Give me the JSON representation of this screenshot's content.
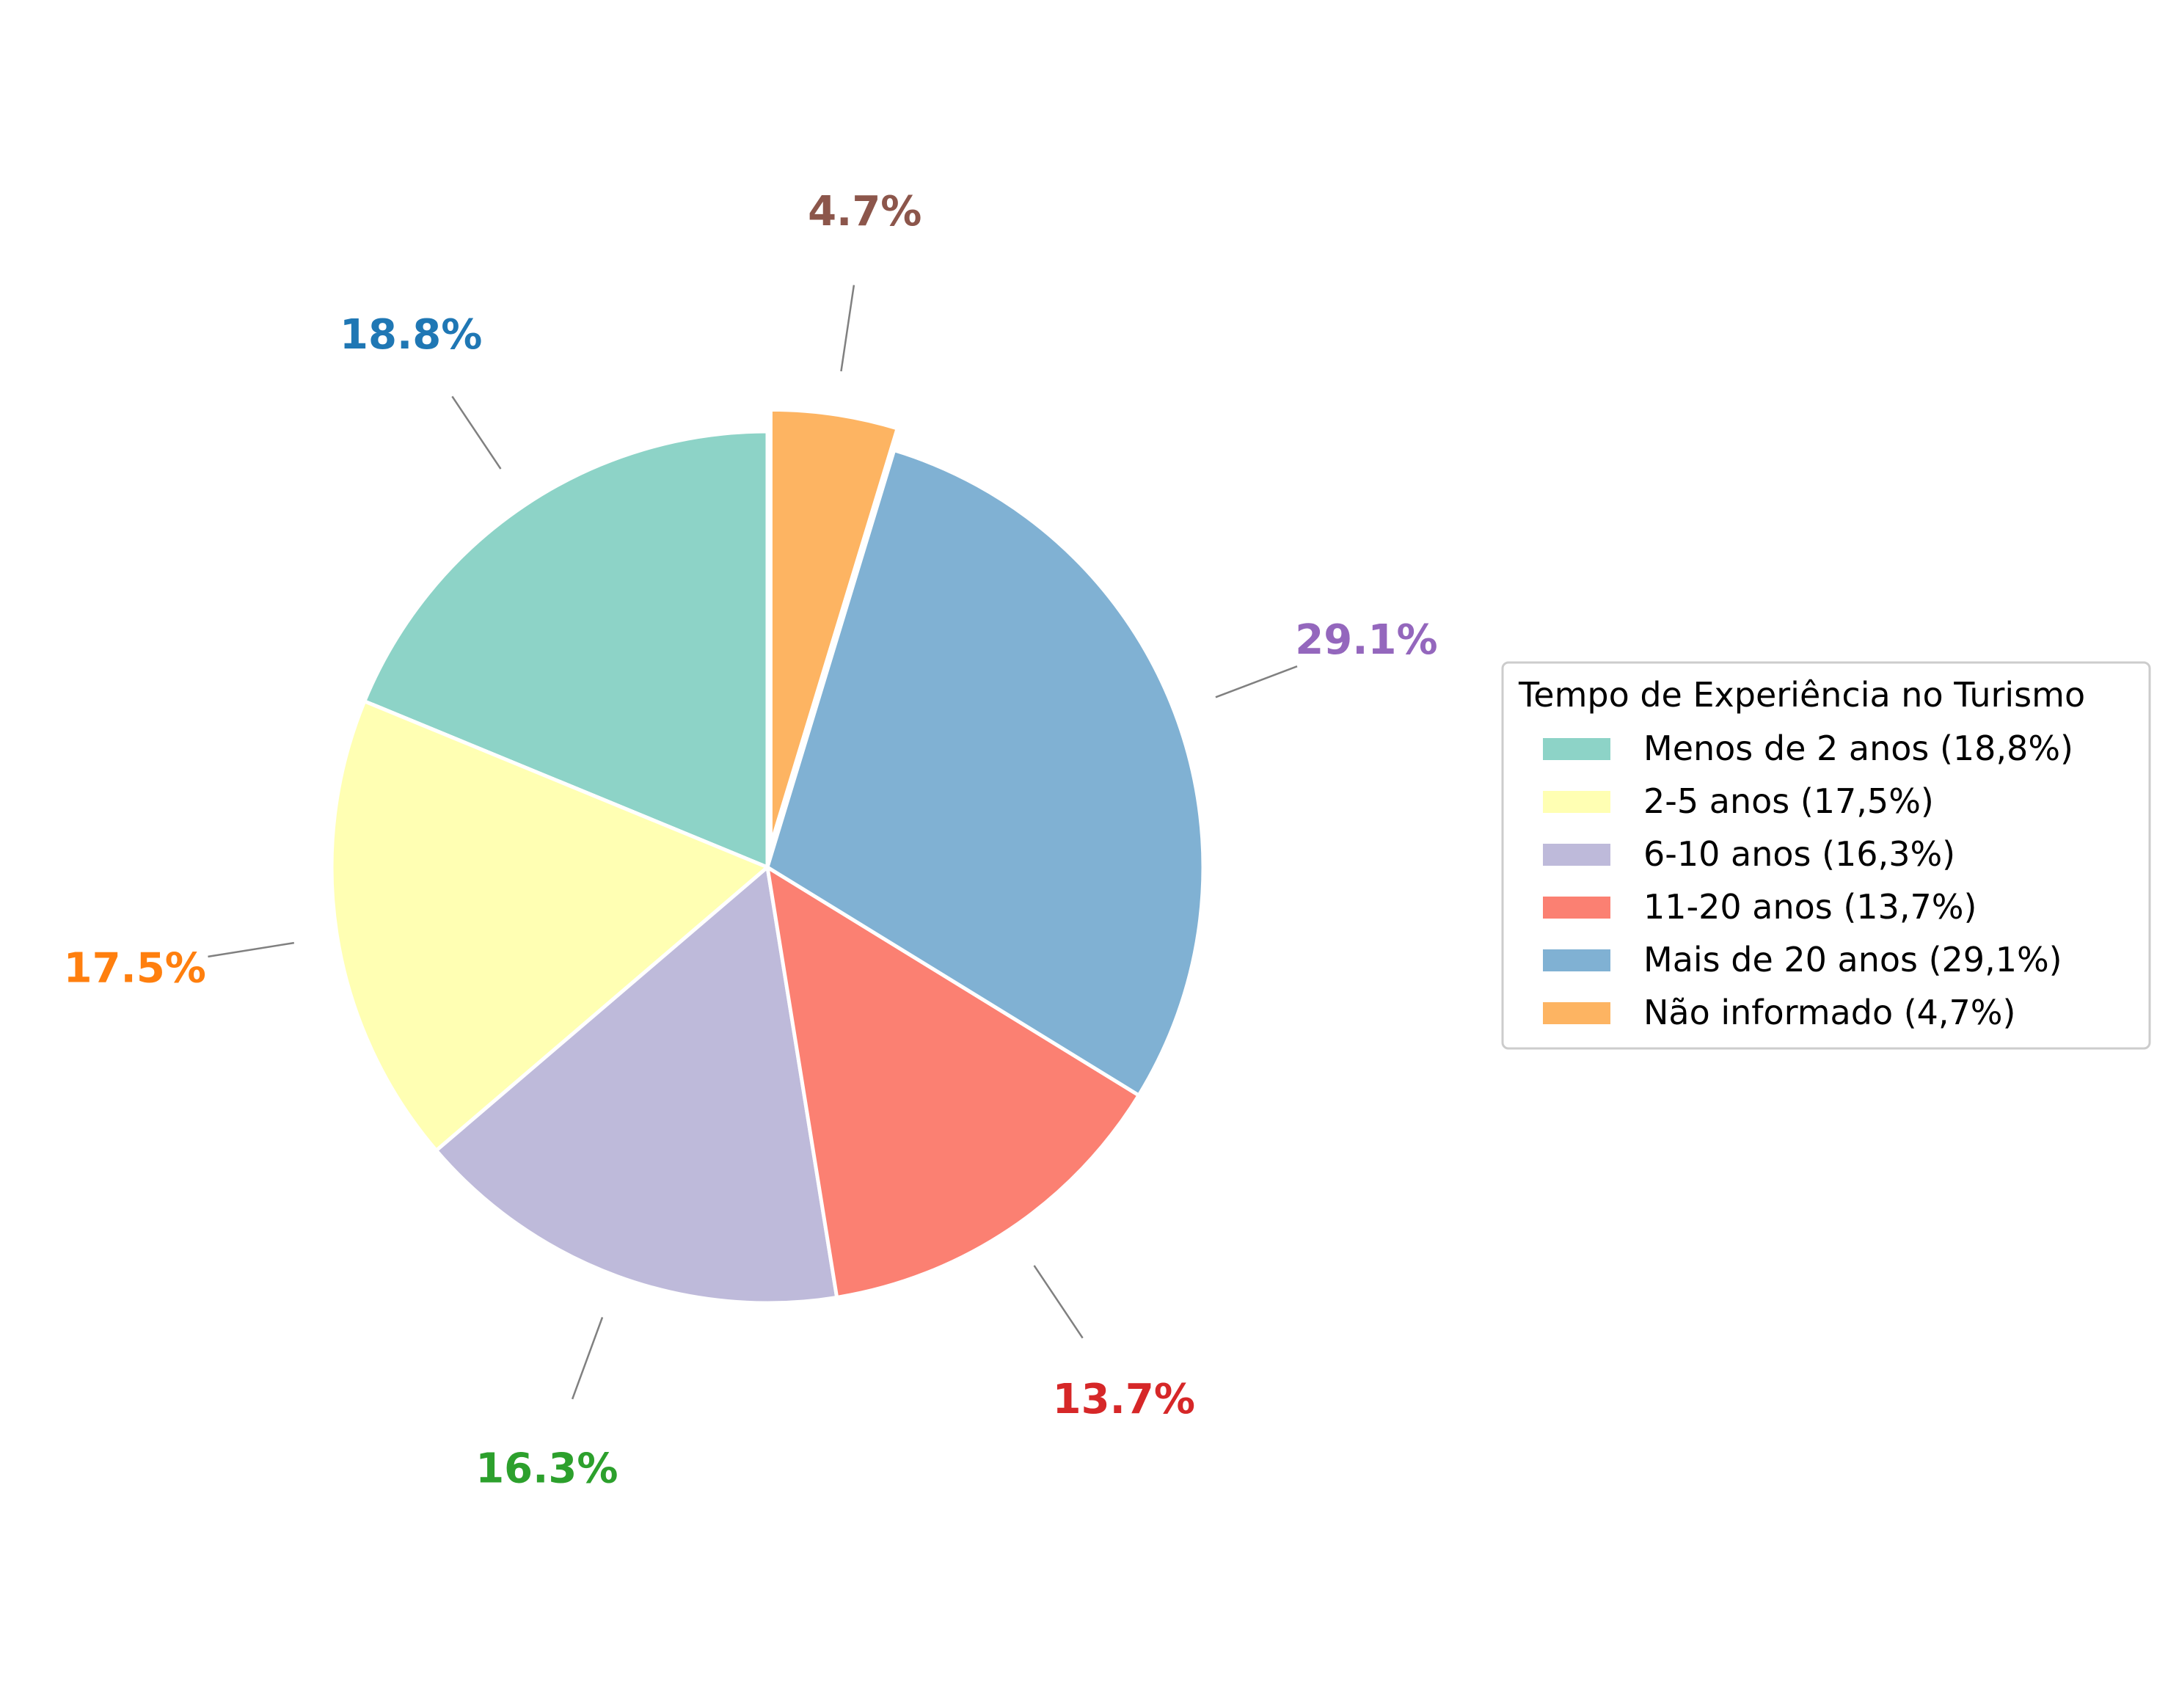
{
  "chart_data": {
    "type": "pie",
    "legend_title": "Tempo de Experiência no Turismo",
    "legend_position": "right",
    "slices": [
      {
        "label": "Menos de 2 anos (18,8%)",
        "value": 18.8,
        "pct_text": "18.8%",
        "color": "#8dd3c7",
        "label_color": "#1f77b4",
        "explode": false
      },
      {
        "label": "2-5 anos (17,5%)",
        "value": 17.5,
        "pct_text": "17.5%",
        "color": "#ffffb3",
        "label_color": "#ff7f0e",
        "explode": false
      },
      {
        "label": "6-10 anos (16,3%)",
        "value": 16.3,
        "pct_text": "16.3%",
        "color": "#bebada",
        "label_color": "#2ca02c",
        "explode": false
      },
      {
        "label": "11-20 anos (13,7%)",
        "value": 13.7,
        "pct_text": "13.7%",
        "color": "#fb8072",
        "label_color": "#d62728",
        "explode": false
      },
      {
        "label": "Mais de 20 anos (29,1%)",
        "value": 29.1,
        "pct_text": "29.1%",
        "color": "#80b1d3",
        "label_color": "#9467bd",
        "explode": false
      },
      {
        "label": "Não informado (4,7%)",
        "value": 4.7,
        "pct_text": "4.7%",
        "color": "#fdb462",
        "label_color": "#8c564b",
        "explode": true
      }
    ]
  }
}
